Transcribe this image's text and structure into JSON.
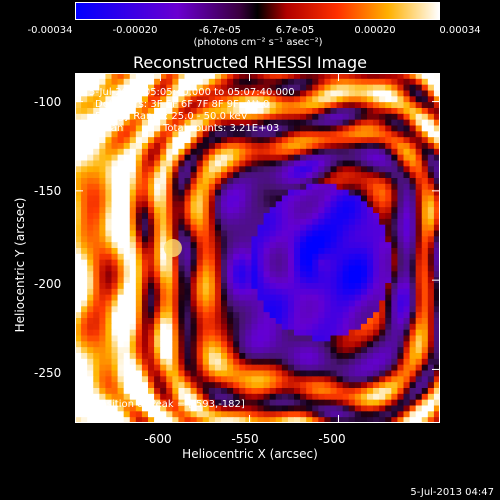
{
  "colorbar": {
    "ticks": [
      "-0.00034",
      "-0.00020",
      "-6.7e-05",
      "6.7e-05",
      "0.00020",
      "0.00034"
    ],
    "unit": "(photons cm⁻² s⁻¹ asec⁻²)",
    "colors": [
      "#0000ff",
      "#8000c0",
      "#c00000",
      "#ff6000",
      "#ffd000",
      "#ffffff"
    ]
  },
  "chart_data": {
    "type": "heatmap",
    "title": "Reconstructed RHESSI Image",
    "xlabel": "Heliocentric X (arcsec)",
    "ylabel": "Heliocentric Y (arcsec)",
    "xlim": [
      -648,
      -443
    ],
    "ylim": [
      -280,
      -84
    ],
    "xticks": [
      "-600",
      "-550",
      "-500"
    ],
    "yticks": [
      "-100",
      "-150",
      "-200",
      "-250"
    ],
    "annotations": [
      "5-Jul-2013 05:05:40.000 to 05:07:40.000",
      "Detectors: 3F 5F 6F 7F 8F 9F, Att 0",
      "Energy Range: 25.0 - 50.0 keV",
      "Clean",
      "Total counts: 3.21E+03"
    ],
    "peak_label": "Position of Peak = [-593,-182]",
    "peak": [
      -593,
      -182
    ]
  },
  "footer": "5-Jul-2013 04:47"
}
